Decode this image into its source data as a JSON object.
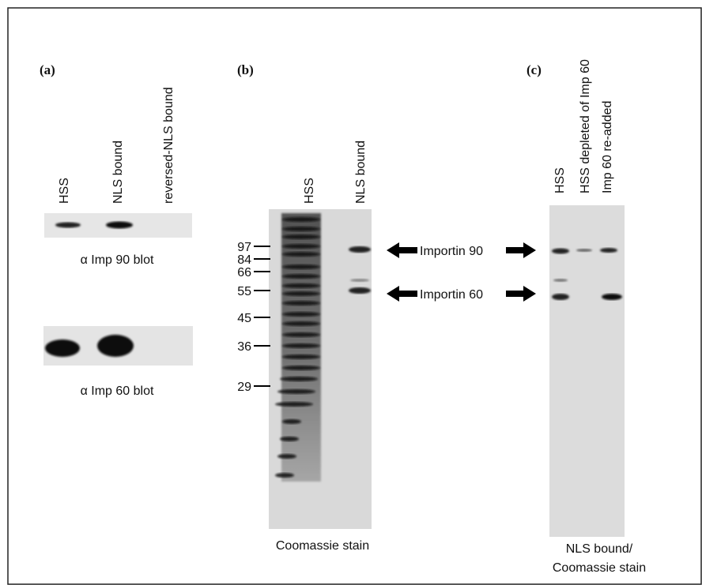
{
  "panel_a": {
    "label": "(a)",
    "lanes": [
      "HSS",
      "NLS bound",
      "reversed-NLS bound"
    ],
    "blots": [
      "α Imp 90 blot",
      "α Imp 60 blot"
    ]
  },
  "panel_b": {
    "label": "(b)",
    "lanes": [
      "HSS",
      "NLS bound"
    ],
    "markers": [
      "97",
      "84",
      "66",
      "55",
      "45",
      "36",
      "29"
    ],
    "caption": "Coomassie stain"
  },
  "arrows": [
    "Importin 90",
    "Importin 60"
  ],
  "panel_c": {
    "label": "(c)",
    "lanes": [
      "HSS",
      "HSS depleted of Imp 60",
      "Imp 60 re-added"
    ],
    "caption": [
      "NLS bound/",
      "Coomassie stain"
    ]
  }
}
